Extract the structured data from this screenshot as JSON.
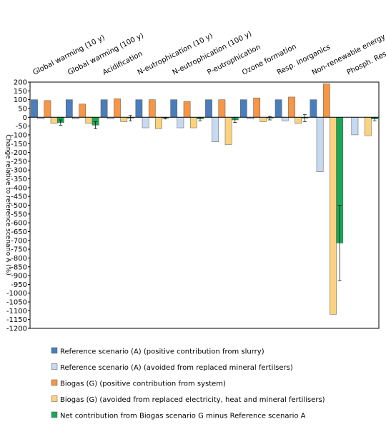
{
  "chart_data": {
    "type": "bar",
    "y_label": "Change relative to reference scenario A (%)",
    "categories": [
      "Global warming (10 y)",
      "Global warming (100 y)",
      "Acidification",
      "N-eutrophication (10 y)",
      "N-eutrophication (100 y)",
      "P-eutrophication",
      "Ozone formation",
      "Resp. inorganics",
      "Non-renewable energy",
      "Phosph. Resources"
    ],
    "series": [
      {
        "name": "Reference scenario (A) (positive contribution from slurry)",
        "color": "#4a7ebb",
        "values": [
          100,
          100,
          100,
          100,
          100,
          100,
          100,
          100,
          100,
          0
        ]
      },
      {
        "name": "Reference scenario (A) (avoided from replaced mineral fertilsers)",
        "color": "#c6d9f1",
        "values": [
          -10,
          -10,
          -10,
          -60,
          -60,
          -140,
          -10,
          -20,
          -310,
          -100
        ]
      },
      {
        "name": "Biogas (G) (positive contribution from system)",
        "color": "#f79646",
        "values": [
          95,
          75,
          105,
          100,
          90,
          100,
          110,
          115,
          190,
          0
        ]
      },
      {
        "name": "Biogas (G) (avoided from replaced electricity, heat and mineral fertilisers)",
        "color": "#fcd27f",
        "values": [
          -35,
          -35,
          -25,
          -65,
          -60,
          -155,
          -25,
          -35,
          -1120,
          -105
        ]
      },
      {
        "name": "Net contribution from Biogas scenario G minus Reference scenario A",
        "color": "#1aa858",
        "values": [
          -30,
          -45,
          -5,
          -5,
          -10,
          -15,
          -5,
          -5,
          -715,
          -10
        ],
        "errors": [
          15,
          20,
          15,
          5,
          10,
          15,
          10,
          20,
          215,
          10
        ]
      }
    ],
    "ylim": [
      -1200,
      200
    ],
    "yticks": [
      200,
      150,
      100,
      50,
      0,
      -50,
      -100,
      -150,
      -200,
      -250,
      -300,
      -350,
      -400,
      -450,
      -500,
      -550,
      -600,
      -650,
      -700,
      -750,
      -800,
      -850,
      -900,
      -950,
      -1000,
      -1050,
      -1100,
      -1150,
      -1200
    ]
  }
}
